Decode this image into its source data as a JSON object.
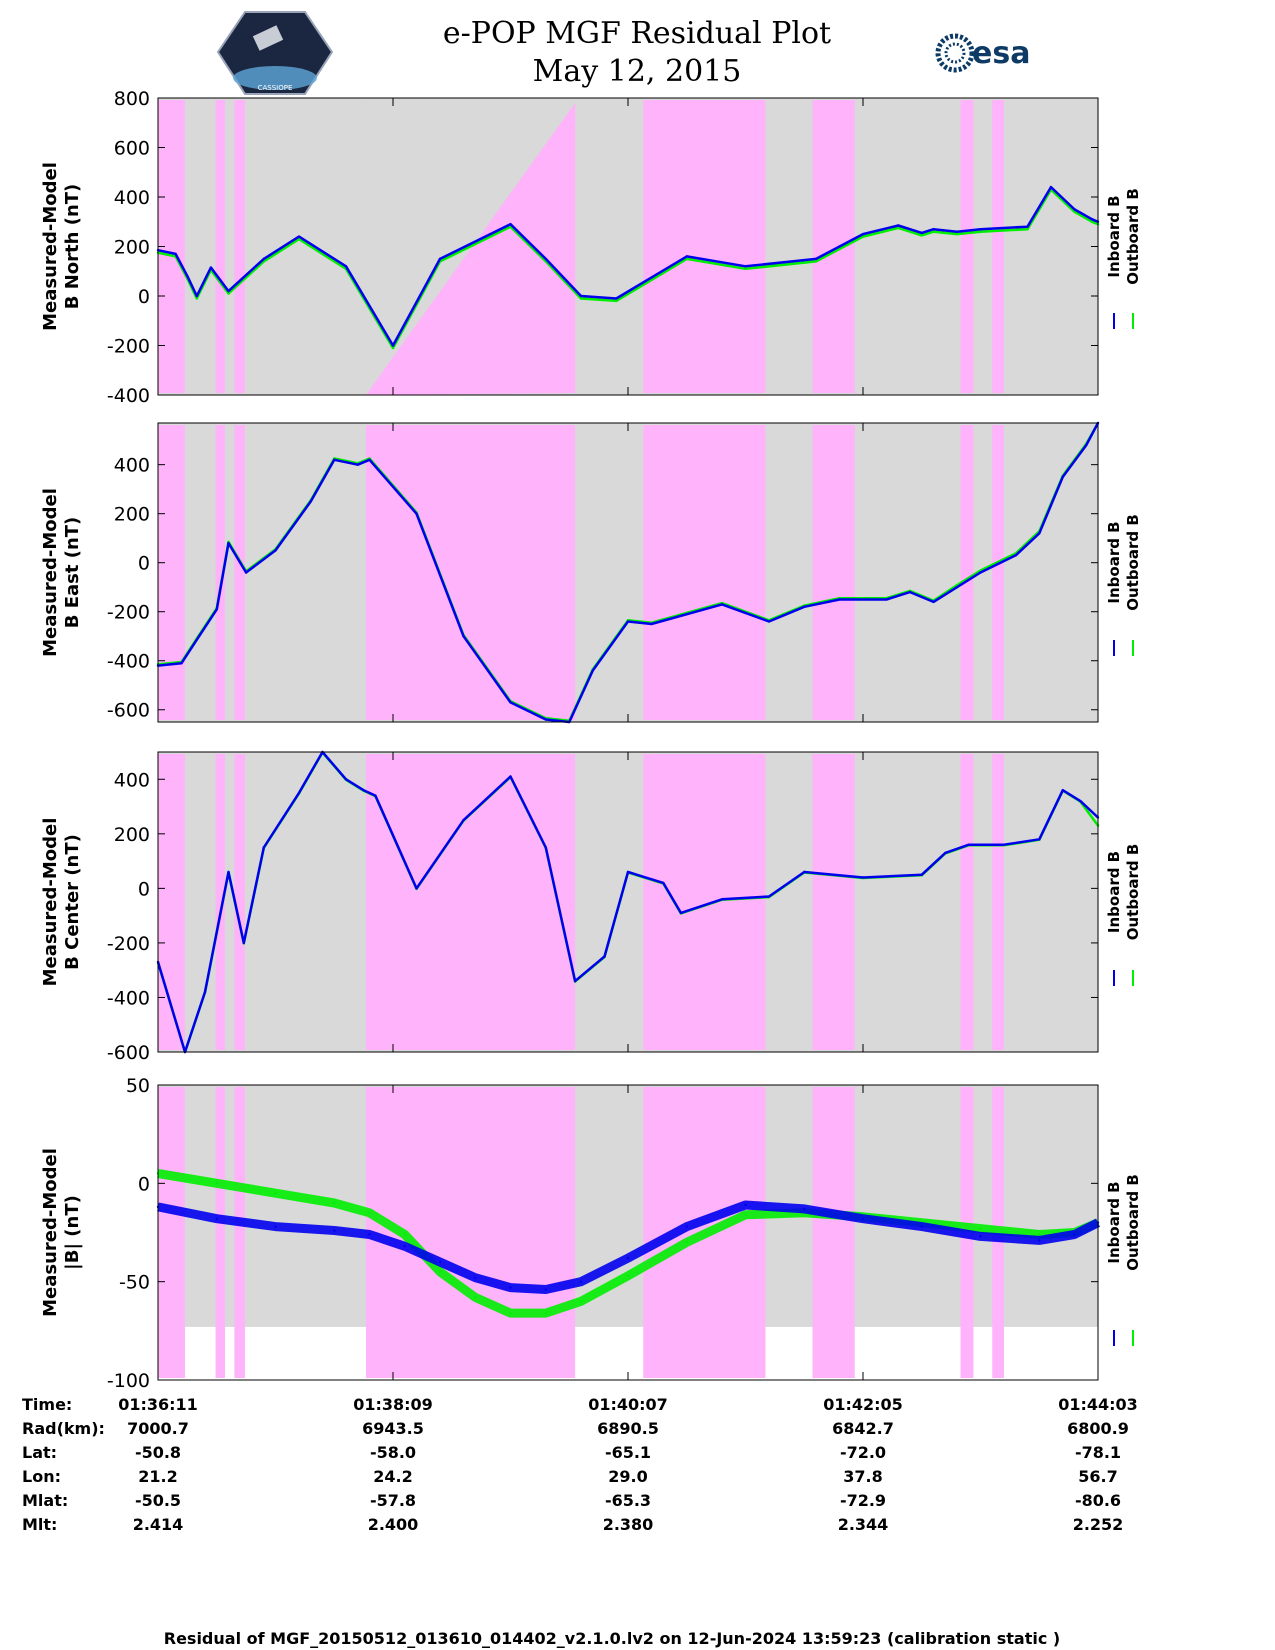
{
  "header": {
    "title_line1": "e-POP MGF Residual Plot",
    "title_line2": "May 12, 2015",
    "logo_left_text": "CASSIOPE",
    "logo_right_text": "esa"
  },
  "colors": {
    "inboard": "#0000ee",
    "outboard": "#00ee00",
    "highlight": "#ffb3fa",
    "background": "#d9d9d9"
  },
  "legend": {
    "inboard": "Inboard B",
    "outboard": "Outboard B"
  },
  "chart_data": [
    {
      "type": "line",
      "ylabel": [
        "Measured-Model",
        "B North (nT)"
      ],
      "ylim": [
        -400,
        800
      ],
      "yticks": [
        "800",
        "600",
        "400",
        "200",
        "0",
        "-200",
        "-400"
      ],
      "ytick_values": [
        800,
        600,
        400,
        200,
        0,
        -200,
        -400
      ],
      "x_minutes": [
        0,
        1,
        2,
        3,
        4,
        5,
        6,
        7,
        8
      ],
      "series": [
        {
          "name": "Inboard B",
          "x": [
            0,
            0.15,
            0.25,
            0.33,
            0.45,
            0.6,
            0.9,
            1.2,
            1.6,
            2.0,
            2.4,
            3.0,
            3.3,
            3.6,
            3.9,
            4.5,
            5.0,
            5.6,
            6.0,
            6.3,
            6.5,
            6.6,
            6.8,
            7.0,
            7.4,
            7.6,
            7.8,
            7.95,
            8.0
          ],
          "values": [
            185,
            170,
            80,
            0,
            115,
            20,
            150,
            240,
            120,
            -200,
            150,
            290,
            150,
            0,
            -10,
            160,
            120,
            150,
            250,
            285,
            255,
            270,
            260,
            270,
            280,
            440,
            350,
            310,
            300
          ]
        },
        {
          "name": "Outboard B",
          "x": [
            0,
            0.15,
            0.25,
            0.33,
            0.45,
            0.6,
            0.9,
            1.2,
            1.6,
            2.0,
            2.4,
            3.0,
            3.3,
            3.6,
            3.9,
            4.5,
            5.0,
            5.6,
            6.0,
            6.3,
            6.5,
            6.6,
            6.8,
            7.0,
            7.4,
            7.6,
            7.8,
            7.95,
            8.0
          ],
          "values": [
            175,
            160,
            70,
            -10,
            105,
            10,
            140,
            230,
            110,
            -210,
            140,
            280,
            140,
            -10,
            -20,
            150,
            110,
            140,
            240,
            275,
            245,
            260,
            250,
            260,
            270,
            430,
            340,
            300,
            290
          ]
        }
      ],
      "shaded_intervals": [
        [
          0,
          0.23
        ],
        [
          0.49,
          0.57
        ],
        [
          0.65,
          0.74
        ],
        [
          1.77,
          3.55
        ],
        [
          4.13,
          5.17
        ],
        [
          5.57,
          5.93
        ],
        [
          6.83,
          6.94
        ],
        [
          7.1,
          7.2
        ]
      ],
      "shaded_diagonal": {
        "from": [
          1.77,
          -400
        ],
        "to": [
          3.55,
          780
        ]
      }
    },
    {
      "type": "line",
      "ylabel": [
        "Measured-Model",
        "B East (nT)"
      ],
      "ylim": [
        -650,
        570
      ],
      "yticks": [
        "400",
        "200",
        "0",
        "-200",
        "-400",
        "-600"
      ],
      "ytick_values": [
        400,
        200,
        0,
        -200,
        -400,
        -600
      ],
      "series": [
        {
          "name": "Inboard B",
          "x": [
            0,
            0.2,
            0.35,
            0.5,
            0.6,
            0.75,
            1.0,
            1.3,
            1.5,
            1.7,
            1.8,
            2.2,
            2.6,
            3.0,
            3.3,
            3.5,
            3.7,
            4.0,
            4.2,
            4.8,
            5.2,
            5.5,
            5.8,
            6.2,
            6.4,
            6.6,
            6.8,
            7.0,
            7.3,
            7.5,
            7.7,
            7.9,
            8.0
          ],
          "values": [
            -420,
            -410,
            -300,
            -190,
            80,
            -40,
            50,
            250,
            420,
            400,
            420,
            200,
            -300,
            -570,
            -640,
            -650,
            -440,
            -240,
            -250,
            -170,
            -240,
            -180,
            -150,
            -150,
            -120,
            -160,
            -100,
            -40,
            30,
            120,
            350,
            480,
            570
          ]
        },
        {
          "name": "Outboard B",
          "x": [
            0,
            0.2,
            0.35,
            0.5,
            0.6,
            0.75,
            1.0,
            1.3,
            1.5,
            1.7,
            1.8,
            2.2,
            2.6,
            3.0,
            3.3,
            3.5,
            3.7,
            4.0,
            4.2,
            4.8,
            5.2,
            5.5,
            5.8,
            6.2,
            6.4,
            6.6,
            6.8,
            7.0,
            7.3,
            7.5,
            7.7,
            7.9,
            8.0
          ],
          "values": [
            -415,
            -405,
            -295,
            -185,
            85,
            -35,
            55,
            255,
            425,
            405,
            425,
            205,
            -295,
            -565,
            -635,
            -645,
            -435,
            -235,
            -245,
            -165,
            -235,
            -175,
            -145,
            -145,
            -115,
            -155,
            -92,
            -32,
            38,
            128,
            355,
            485,
            570
          ]
        }
      ],
      "shaded_intervals": [
        [
          0,
          0.23
        ],
        [
          0.49,
          0.57
        ],
        [
          0.65,
          0.74
        ],
        [
          1.77,
          3.55
        ],
        [
          4.13,
          5.17
        ],
        [
          5.57,
          5.93
        ],
        [
          6.83,
          6.94
        ],
        [
          7.1,
          7.2
        ]
      ]
    },
    {
      "type": "line",
      "ylabel": [
        "Measured-Model",
        "B Center (nT)"
      ],
      "ylim": [
        -600,
        500
      ],
      "yticks": [
        "400",
        "200",
        "0",
        "-200",
        "-400",
        "-600"
      ],
      "ytick_values": [
        400,
        200,
        0,
        -200,
        -400,
        -600
      ],
      "series": [
        {
          "name": "Inboard B",
          "x": [
            0,
            0.23,
            0.4,
            0.6,
            0.73,
            0.9,
            1.2,
            1.4,
            1.6,
            1.75,
            1.85,
            2.2,
            2.6,
            3.0,
            3.3,
            3.55,
            3.8,
            4.0,
            4.3,
            4.45,
            4.8,
            5.2,
            5.5,
            6.0,
            6.5,
            6.7,
            6.9,
            7.2,
            7.5,
            7.7,
            7.85,
            8.0
          ],
          "values": [
            -270,
            -600,
            -380,
            60,
            -200,
            150,
            350,
            500,
            400,
            360,
            340,
            0,
            250,
            410,
            150,
            -340,
            -250,
            60,
            20,
            -90,
            -40,
            -30,
            60,
            40,
            50,
            130,
            160,
            160,
            180,
            360,
            320,
            260
          ]
        },
        {
          "name": "Outboard B",
          "x": [
            0,
            0.23,
            0.4,
            0.6,
            0.73,
            0.9,
            1.2,
            1.4,
            1.6,
            1.75,
            1.85,
            2.2,
            2.6,
            3.0,
            3.3,
            3.55,
            3.8,
            4.0,
            4.3,
            4.45,
            4.8,
            5.2,
            5.5,
            6.0,
            6.5,
            6.7,
            6.9,
            7.2,
            7.5,
            7.7,
            7.85,
            8.0
          ],
          "values": [
            -272,
            -602,
            -382,
            58,
            -202,
            148,
            348,
            498,
            398,
            358,
            338,
            -2,
            248,
            408,
            148,
            -342,
            -252,
            58,
            18,
            -92,
            -42,
            -32,
            58,
            38,
            48,
            128,
            158,
            158,
            178,
            358,
            318,
            230
          ]
        }
      ],
      "shaded_intervals": [
        [
          0,
          0.23
        ],
        [
          0.49,
          0.57
        ],
        [
          0.65,
          0.74
        ],
        [
          1.77,
          3.55
        ],
        [
          4.13,
          5.17
        ],
        [
          5.57,
          5.93
        ],
        [
          6.83,
          6.94
        ],
        [
          7.1,
          7.2
        ]
      ]
    },
    {
      "type": "line",
      "ylabel": [
        "Measured-Model",
        "|B| (nT)"
      ],
      "ylim": [
        -100,
        50
      ],
      "yticks": [
        "50",
        "0",
        "-50",
        "-100"
      ],
      "ytick_values": [
        50,
        0,
        -50,
        -100
      ],
      "grey_bottom": -73,
      "series": [
        {
          "name": "Inboard B",
          "x": [
            0,
            0.5,
            1.0,
            1.5,
            1.8,
            2.1,
            2.4,
            2.7,
            3.0,
            3.3,
            3.6,
            4.0,
            4.5,
            5.0,
            5.5,
            6.0,
            6.5,
            7.0,
            7.5,
            7.8,
            8.0
          ],
          "values": [
            -12,
            -18,
            -22,
            -24,
            -26,
            -32,
            -40,
            -48,
            -53,
            -54,
            -50,
            -38,
            -22,
            -11,
            -13,
            -18,
            -22,
            -27,
            -29,
            -26,
            -20
          ]
        },
        {
          "name": "Outboard B",
          "x": [
            0,
            0.5,
            1.0,
            1.5,
            1.8,
            2.1,
            2.4,
            2.7,
            3.0,
            3.3,
            3.6,
            4.0,
            4.5,
            5.0,
            5.5,
            6.0,
            6.5,
            7.0,
            7.5,
            7.8,
            8.0
          ],
          "values": [
            5,
            0,
            -5,
            -10,
            -15,
            -26,
            -45,
            -58,
            -66,
            -66,
            -60,
            -47,
            -30,
            -16,
            -15,
            -17,
            -20,
            -23,
            -26,
            -25,
            -20
          ]
        }
      ],
      "shaded_intervals": [
        [
          0,
          0.23
        ],
        [
          0.49,
          0.57
        ],
        [
          0.65,
          0.74
        ],
        [
          1.77,
          3.55
        ],
        [
          4.13,
          5.17
        ],
        [
          5.57,
          5.93
        ],
        [
          6.83,
          6.94
        ],
        [
          7.1,
          7.2
        ]
      ]
    }
  ],
  "info_table": {
    "labels": [
      "Time:",
      "Rad(km):",
      "Lat:",
      "Lon:",
      "Mlat:",
      "Mlt:"
    ],
    "columns": [
      [
        "01:36:11",
        "7000.7",
        "-50.8",
        "21.2",
        "-50.5",
        "2.414"
      ],
      [
        "01:38:09",
        "6943.5",
        "-58.0",
        "24.2",
        "-57.8",
        "2.400"
      ],
      [
        "01:40:07",
        "6890.5",
        "-65.1",
        "29.0",
        "-65.3",
        "2.380"
      ],
      [
        "01:42:05",
        "6842.7",
        "-72.0",
        "37.8",
        "-72.9",
        "2.344"
      ],
      [
        "01:44:03",
        "6800.9",
        "-78.1",
        "56.7",
        "-80.6",
        "2.252"
      ]
    ]
  },
  "footer": "Residual of MGF_20150512_013610_014402_v2.1.0.lv2 on 12-Jun-2024 13:59:23 (calibration static )"
}
